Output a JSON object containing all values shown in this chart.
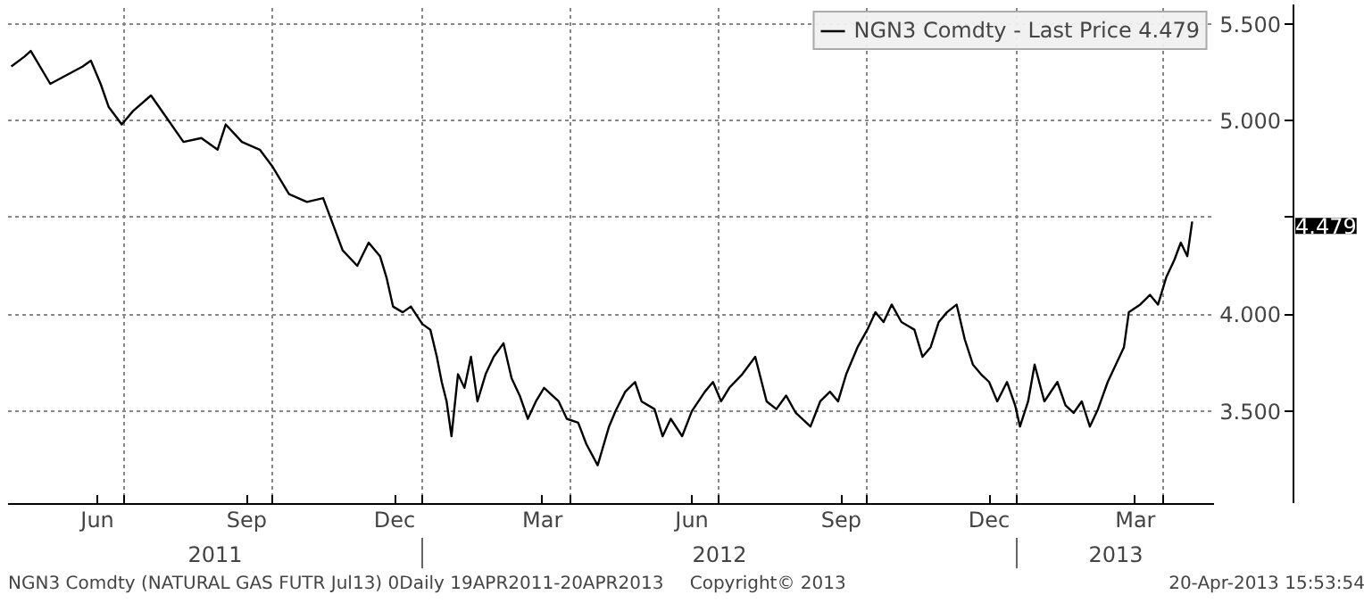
{
  "chart_data": {
    "type": "line",
    "x": [
      "2011-04-23",
      "2011-05-01",
      "2011-05-05",
      "2011-05-17",
      "2011-06-06",
      "2011-06-11",
      "2011-06-17",
      "2011-06-22",
      "2011-06-30",
      "2011-07-07",
      "2011-07-18",
      "2011-07-28",
      "2011-08-07",
      "2011-08-18",
      "2011-08-28",
      "2011-09-02",
      "2011-09-12",
      "2011-09-23",
      "2011-10-01",
      "2011-10-11",
      "2011-10-22",
      "2011-11-01",
      "2011-11-05",
      "2011-11-13",
      "2011-11-22",
      "2011-11-29",
      "2011-12-06",
      "2011-12-10",
      "2011-12-14",
      "2011-12-20",
      "2011-12-25",
      "2012-01-01",
      "2012-01-06",
      "2012-01-10",
      "2012-01-13",
      "2012-01-16",
      "2012-01-19",
      "2012-01-23",
      "2012-01-27",
      "2012-01-31",
      "2012-02-04",
      "2012-02-09",
      "2012-02-14",
      "2012-02-20",
      "2012-02-25",
      "2012-03-01",
      "2012-03-06",
      "2012-03-11",
      "2012-03-16",
      "2012-03-25",
      "2012-03-30",
      "2012-04-06",
      "2012-04-11",
      "2012-04-18",
      "2012-04-25",
      "2012-04-29",
      "2012-05-05",
      "2012-05-11",
      "2012-05-15",
      "2012-05-23",
      "2012-05-28",
      "2012-06-02",
      "2012-06-09",
      "2012-06-15",
      "2012-06-23",
      "2012-06-28",
      "2012-07-03",
      "2012-07-08",
      "2012-07-16",
      "2012-07-24",
      "2012-07-31",
      "2012-08-06",
      "2012-08-12",
      "2012-08-18",
      "2012-08-27",
      "2012-09-02",
      "2012-09-08",
      "2012-09-13",
      "2012-09-18",
      "2012-09-25",
      "2012-10-01",
      "2012-10-06",
      "2012-10-11",
      "2012-10-16",
      "2012-10-22",
      "2012-10-30",
      "2012-11-04",
      "2012-11-09",
      "2012-11-14",
      "2012-11-19",
      "2012-11-25",
      "2012-11-30",
      "2012-12-05",
      "2012-12-10",
      "2012-12-15",
      "2012-12-20",
      "2012-12-26",
      "2012-12-31",
      "2013-01-03",
      "2013-01-08",
      "2013-01-12",
      "2013-01-18",
      "2013-01-26",
      "2013-01-31",
      "2013-02-05",
      "2013-02-10",
      "2013-02-15",
      "2013-02-20",
      "2013-02-26",
      "2013-03-03",
      "2013-03-08",
      "2013-03-11",
      "2013-03-18",
      "2013-03-24",
      "2013-03-29",
      "2013-04-03",
      "2013-04-08",
      "2013-04-12",
      "2013-04-16",
      "2013-04-19"
    ],
    "series": [
      {
        "name": "NGN3 Comdty - Last Price 4.479",
        "color": "#000000",
        "values": [
          5.28,
          5.33,
          5.36,
          5.19,
          5.28,
          5.31,
          5.19,
          5.07,
          4.98,
          5.05,
          5.13,
          5.01,
          4.89,
          4.91,
          4.85,
          4.98,
          4.89,
          4.85,
          4.76,
          4.62,
          4.58,
          4.6,
          4.51,
          4.33,
          4.25,
          4.37,
          4.3,
          4.19,
          4.04,
          4.01,
          4.04,
          3.95,
          3.92,
          3.78,
          3.65,
          3.55,
          3.37,
          3.69,
          3.62,
          3.78,
          3.55,
          3.69,
          3.78,
          3.85,
          3.67,
          3.58,
          3.46,
          3.55,
          3.62,
          3.55,
          3.46,
          3.44,
          3.33,
          3.22,
          3.42,
          3.5,
          3.6,
          3.65,
          3.55,
          3.51,
          3.37,
          3.46,
          3.37,
          3.5,
          3.6,
          3.65,
          3.55,
          3.62,
          3.69,
          3.78,
          3.55,
          3.51,
          3.58,
          3.49,
          3.42,
          3.55,
          3.6,
          3.55,
          3.69,
          3.83,
          3.92,
          4.01,
          3.96,
          4.05,
          3.96,
          3.92,
          3.78,
          3.83,
          3.96,
          4.01,
          4.05,
          3.87,
          3.74,
          3.69,
          3.65,
          3.55,
          3.65,
          3.53,
          3.42,
          3.55,
          3.74,
          3.55,
          3.65,
          3.53,
          3.49,
          3.55,
          3.42,
          3.51,
          3.65,
          3.74,
          3.83,
          4.01,
          4.05,
          4.1,
          4.05,
          4.19,
          4.28,
          4.37,
          4.3,
          4.479
        ]
      }
    ],
    "xlim": [
      "2011-04-21",
      "2013-05-03"
    ],
    "xticks": [
      {
        "value": "2011-06-15",
        "label": "Jun"
      },
      {
        "value": "2011-07-01",
        "label": null
      },
      {
        "value": "2011-09-15",
        "label": "Sep"
      },
      {
        "value": "2011-10-01",
        "label": null
      },
      {
        "value": "2011-12-15",
        "label": "Dec"
      },
      {
        "value": "2012-01-01",
        "label": null
      },
      {
        "value": "2012-03-15",
        "label": "Mar"
      },
      {
        "value": "2012-04-01",
        "label": null
      },
      {
        "value": "2012-06-15",
        "label": "Jun"
      },
      {
        "value": "2012-07-01",
        "label": null
      },
      {
        "value": "2012-09-15",
        "label": "Sep"
      },
      {
        "value": "2012-10-01",
        "label": null
      },
      {
        "value": "2012-12-15",
        "label": "Dec"
      },
      {
        "value": "2013-01-01",
        "label": null
      },
      {
        "value": "2013-03-15",
        "label": "Mar"
      },
      {
        "value": "2013-04-01",
        "label": null
      }
    ],
    "ylim": [
      3.02,
      5.6
    ],
    "yticks": [
      {
        "value": 3.5,
        "label": "3.500"
      },
      {
        "value": 4.0,
        "label": "4.000"
      },
      {
        "value": 4.5,
        "label": null
      },
      {
        "value": 5.0,
        "label": "5.000"
      },
      {
        "value": 5.5,
        "label": "5.500"
      }
    ],
    "grid": true,
    "legend": "top right",
    "line_style": "solid",
    "annotations": [
      "4.479",
      "2011",
      "2012",
      "2013",
      "NGN3 Comdty (NATURAL GAS FUTR  Jul13) 0Daily 19APR2011-20APR2013",
      "Copyright© 2013",
      "20-Apr-2013 15:53:54"
    ]
  }
}
